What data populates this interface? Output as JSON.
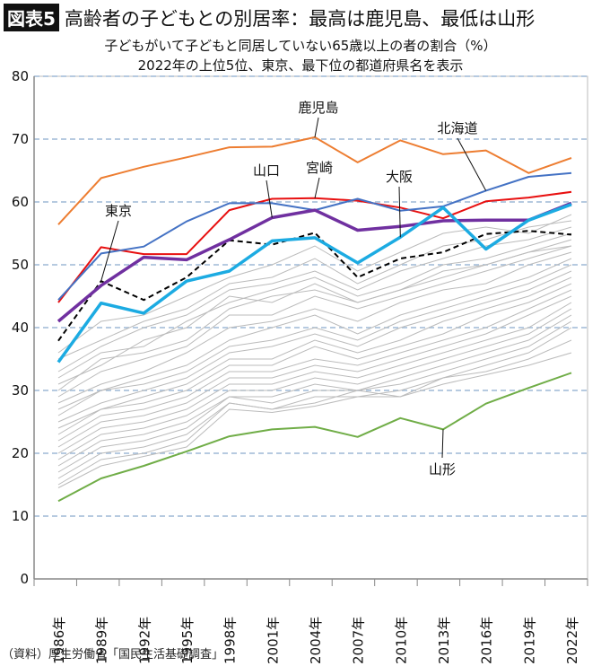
{
  "header": {
    "badge": "図表5",
    "title": "高齢者の子どもとの別居率：最高は鹿児島、最低は山形"
  },
  "source": "（資料）厚生労働省「国民生活基礎調査」",
  "chart_data": {
    "type": "line",
    "title": "子どもがいて子どもと同居していない65歳以上の者の割合（%）",
    "subtitle": "2022年の上位5位、東京、最下位の都道府県名を表示",
    "x": [
      "1986年",
      "1989年",
      "1992年",
      "1995年",
      "1998年",
      "2001年",
      "2004年",
      "2007年",
      "2010年",
      "2013年",
      "2016年",
      "2019年",
      "2022年"
    ],
    "ylim": [
      0,
      80
    ],
    "yticks": [
      0,
      10,
      20,
      30,
      40,
      50,
      60,
      70,
      80
    ],
    "grid": "horizontal-dashed",
    "series": [
      {
        "name": "鹿児島",
        "color": "#ED7D31",
        "width": 2,
        "values": [
          56.4,
          63.8,
          65.6,
          67.1,
          68.7,
          68.8,
          70.3,
          66.3,
          69.8,
          67.6,
          68.2,
          64.6,
          67.0
        ]
      },
      {
        "name": "北海道",
        "color": "#4472C4",
        "width": 2,
        "values": [
          44.4,
          51.8,
          52.9,
          56.9,
          59.8,
          59.8,
          58.7,
          60.5,
          58.6,
          59.3,
          61.8,
          64.0,
          64.6
        ]
      },
      {
        "name": "宮崎",
        "color": "#E81010",
        "width": 2,
        "values": [
          44.0,
          52.8,
          51.7,
          51.7,
          58.7,
          60.5,
          60.6,
          60.2,
          59.1,
          57.4,
          60.1,
          60.7,
          61.6
        ]
      },
      {
        "name": "山口",
        "color": "#7030A0",
        "width": 3.5,
        "values": [
          41.0,
          46.7,
          51.2,
          50.8,
          54.0,
          57.5,
          58.7,
          55.5,
          56.1,
          57.0,
          57.1,
          57.1,
          59.8
        ]
      },
      {
        "name": "大阪",
        "color": "#1CABE2",
        "width": 3.5,
        "values": [
          34.5,
          43.9,
          42.3,
          47.4,
          49.0,
          53.8,
          54.3,
          50.3,
          54.4,
          59.1,
          52.5,
          57.1,
          59.6
        ]
      },
      {
        "name": "東京",
        "color": "#000000",
        "width": 2,
        "dash": true,
        "values": [
          37.9,
          47.4,
          44.4,
          48.0,
          53.9,
          53.2,
          55.1,
          48.0,
          51.0,
          52.0,
          54.9,
          55.4,
          54.8
        ]
      },
      {
        "name": "山形",
        "color": "#70AD47",
        "width": 2,
        "values": [
          12.4,
          16.0,
          18.0,
          20.3,
          22.7,
          23.8,
          24.2,
          22.6,
          25.6,
          23.8,
          27.9,
          30.4,
          32.8
        ]
      }
    ],
    "other_series_color": "#BBBBBB",
    "other_series": [
      [
        36,
        41,
        42,
        45,
        48,
        50,
        53,
        49,
        52,
        55,
        56,
        55,
        58
      ],
      [
        35,
        38,
        41,
        43,
        47,
        48,
        51,
        47,
        50,
        53,
        54,
        56,
        57
      ],
      [
        33,
        37,
        40,
        42,
        46,
        47,
        49,
        46,
        49,
        51,
        53,
        54,
        56
      ],
      [
        32,
        36,
        37,
        41,
        44,
        46,
        48,
        45,
        47,
        50,
        51,
        53,
        55
      ],
      [
        30,
        35,
        36,
        38,
        43,
        45,
        46,
        44,
        46,
        48,
        50,
        52,
        54
      ],
      [
        29,
        33,
        35,
        37,
        42,
        42,
        45,
        43,
        45,
        47,
        49,
        51,
        53
      ],
      [
        28,
        31,
        33,
        36,
        40,
        41,
        43,
        41,
        44,
        46,
        47,
        50,
        52
      ],
      [
        27,
        30,
        32,
        34,
        38,
        40,
        42,
        39,
        42,
        44,
        46,
        48,
        51
      ],
      [
        26,
        30,
        31,
        33,
        37,
        38,
        40,
        38,
        41,
        43,
        45,
        47,
        50
      ],
      [
        25,
        28,
        30,
        32,
        36,
        37,
        39,
        37,
        40,
        42,
        44,
        46,
        49
      ],
      [
        24,
        27,
        29,
        31,
        35,
        35,
        38,
        36,
        38,
        41,
        43,
        45,
        48
      ],
      [
        23,
        27,
        28,
        30,
        34,
        34,
        37,
        35,
        37,
        39,
        42,
        44,
        47
      ],
      [
        22,
        26,
        27,
        29,
        33,
        33,
        35,
        34,
        36,
        38,
        40,
        43,
        46
      ],
      [
        21,
        25,
        26,
        28,
        32,
        32,
        34,
        33,
        35,
        37,
        39,
        42,
        45
      ],
      [
        20,
        24,
        25,
        27,
        31,
        31,
        33,
        32,
        34,
        36,
        38,
        40,
        44
      ],
      [
        19,
        23,
        24,
        26,
        30,
        30,
        32,
        31,
        33,
        35,
        37,
        39,
        43
      ],
      [
        18,
        22,
        23,
        25,
        29,
        29,
        31,
        30,
        32,
        34,
        36,
        38,
        42
      ],
      [
        17,
        21,
        22,
        24,
        29,
        28,
        30,
        30,
        31,
        33,
        35,
        37,
        41
      ],
      [
        16,
        20,
        21,
        23,
        28,
        27,
        29,
        29,
        30,
        32,
        34,
        36,
        40
      ],
      [
        15,
        19,
        20,
        22,
        28,
        27,
        28,
        30,
        29,
        32,
        33,
        35,
        38
      ],
      [
        14.5,
        18,
        19.5,
        21,
        27,
        26.5,
        27.5,
        29,
        29,
        31,
        32.5,
        34,
        36
      ],
      [
        31,
        34,
        38,
        40,
        45,
        44,
        47,
        44,
        46,
        49,
        50,
        52,
        53
      ]
    ],
    "annotations": [
      {
        "text": "鹿児島",
        "series": "鹿児島",
        "at": "2004年"
      },
      {
        "text": "北海道",
        "series": "北海道",
        "at": "2016年"
      },
      {
        "text": "宮崎",
        "series": "宮崎",
        "at": "2004年"
      },
      {
        "text": "山口",
        "series": "山口",
        "at": "2001年"
      },
      {
        "text": "大阪",
        "series": "大阪",
        "at": "2010年"
      },
      {
        "text": "東京",
        "series": "東京",
        "at": "1989年"
      },
      {
        "text": "山形",
        "series": "山形",
        "at": "2013年"
      }
    ]
  }
}
